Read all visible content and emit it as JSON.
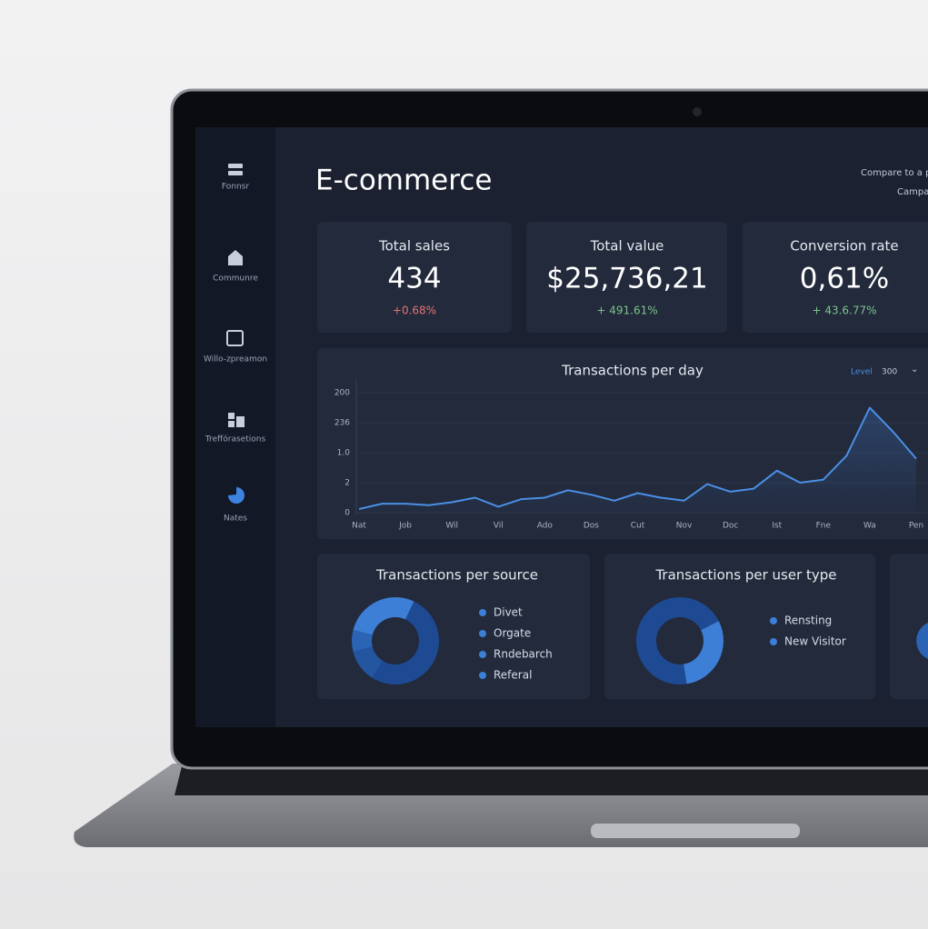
{
  "sidebar": {
    "items": [
      "Fonnsr",
      "Communre",
      "Willo-zpreamon",
      "Treffórasetions",
      "Nates"
    ]
  },
  "header": {
    "title": "E-commerce",
    "compare": "Compare to a pe",
    "campaign": "Campa"
  },
  "kpis": [
    {
      "label": "Total sales",
      "value": "434",
      "change": "+0.68%"
    },
    {
      "label": "Total value",
      "value": "$25,736,21",
      "change": "+ 491.61%"
    },
    {
      "label": "Conversion rate",
      "value": "0,61%",
      "change": "+ 43.6.77%"
    }
  ],
  "transactions_per_day": {
    "type": "line",
    "title": "Transactions per day",
    "level_label": "Level",
    "level_value": "300",
    "chevron": "⌄",
    "categories": [
      "Nat",
      "Job",
      "Wil",
      "Vil",
      "Ado",
      "Dos",
      "Cut",
      "Nov",
      "Doc",
      "Ist",
      "Fne",
      "Wa",
      "Pen"
    ],
    "x": [
      0,
      0.5,
      1,
      1.5,
      2,
      2.5,
      3,
      3.5,
      4,
      4.5,
      5,
      5.5,
      6,
      6.5,
      7,
      7.5,
      8,
      8.5,
      9,
      9.5,
      10,
      10.5,
      11,
      11.5,
      12
    ],
    "values": [
      0.12,
      0.3,
      0.3,
      0.25,
      0.35,
      0.5,
      0.2,
      0.45,
      0.5,
      0.75,
      0.6,
      0.4,
      0.65,
      0.5,
      0.4,
      0.95,
      0.7,
      0.8,
      1.4,
      1.0,
      1.1,
      1.9,
      3.5,
      2.7,
      1.8
    ],
    "xlim": [
      0,
      12
    ],
    "ylim": [
      0,
      4
    ],
    "y_labels": [
      "200",
      "236",
      "1.0",
      "2",
      "0"
    ],
    "color": "#4a8fe6"
  },
  "donuts": [
    {
      "type": "pie",
      "title": "Transactions per source",
      "categories": [
        "Divet",
        "Orgate",
        "Rndebarch",
        "Referal"
      ],
      "values": [
        28,
        52,
        12,
        8
      ],
      "colors": [
        "#3d7fd6",
        "#1e4a93",
        "#24569f",
        "#2b63b5"
      ]
    },
    {
      "type": "pie",
      "title": "Transactions per user type",
      "categories": [
        "Rensting",
        "New Visitor"
      ],
      "values": [
        70,
        30
      ],
      "colors": [
        "#1e4a93",
        "#3d7fd6"
      ]
    }
  ]
}
